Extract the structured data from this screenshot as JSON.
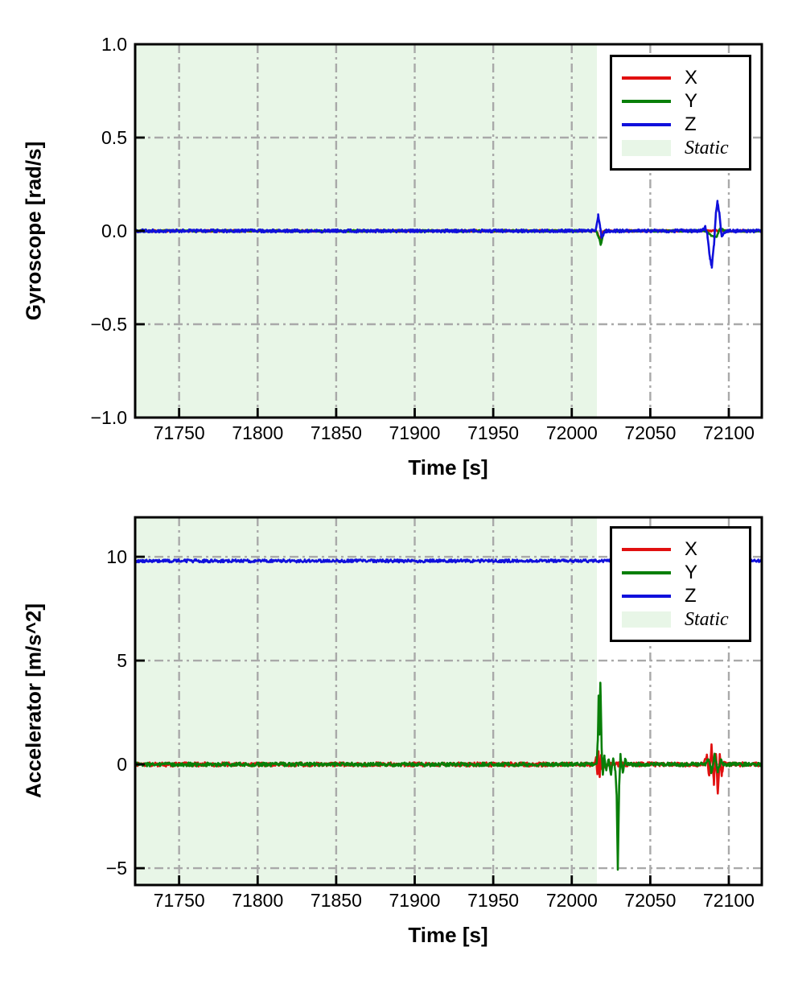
{
  "figure": {
    "background": "#ffffff"
  },
  "styles": {
    "grid_color": "#a9a9a9",
    "axis_color": "#000000",
    "tick_label_color": "#000000",
    "static_fill": "#e8f6e7",
    "series_colors": {
      "x": "#e11010",
      "y": "#087f08",
      "z": "#1010dc"
    }
  },
  "chart_data": [
    {
      "type": "line",
      "title": "",
      "xlabel": "Time [s]",
      "ylabel": "Gyroscope [rad/s]",
      "xlim": [
        71722,
        72121
      ],
      "ylim": [
        -1.0,
        1.0
      ],
      "xticks": [
        71750,
        71800,
        71850,
        71900,
        71950,
        72000,
        72050,
        72100
      ],
      "xtick_labels": [
        "71750",
        "71800",
        "71850",
        "71900",
        "71950",
        "72000",
        "72050",
        "72100"
      ],
      "yticks": [
        -1.0,
        -0.5,
        0.0,
        0.5,
        1.0
      ],
      "ytick_labels": [
        "−1.0",
        "−0.5",
        "0.0",
        "0.5",
        "1.0"
      ],
      "grid": {
        "style": "dash-dot",
        "color": "#a9a9a9",
        "on": true
      },
      "static_region": {
        "x0": 71722,
        "x1": 72016,
        "fill": "#e8f6e7",
        "label": "Static"
      },
      "legend": {
        "position": "upper right",
        "entries": [
          {
            "label": "X",
            "color": "#e11010",
            "kind": "line"
          },
          {
            "label": "Y",
            "color": "#087f08",
            "kind": "line"
          },
          {
            "label": "Z",
            "color": "#1010dc",
            "kind": "line"
          },
          {
            "label": "Static",
            "color": "#e8f6e7",
            "kind": "patch",
            "italic": true
          }
        ]
      },
      "series": [
        {
          "name": "X",
          "color": "#e11010",
          "base": 0,
          "noise": 0.005,
          "events": [
            [
              [
                72015.5,
                0
              ],
              [
                72017,
                -0.025
              ],
              [
                72018,
                -0.05
              ],
              [
                72019.5,
                -0.012
              ],
              [
                72021,
                0
              ]
            ]
          ]
        },
        {
          "name": "Y",
          "color": "#087f08",
          "base": 0,
          "noise": 0.005,
          "events": [
            [
              [
                72015.5,
                0
              ],
              [
                72017.5,
                -0.04
              ],
              [
                72018.5,
                -0.075
              ],
              [
                72020,
                -0.02
              ],
              [
                72021.5,
                0
              ]
            ],
            [
              [
                72085,
                0
              ],
              [
                72089,
                -0.028
              ],
              [
                72092,
                -0.035
              ],
              [
                72094.5,
                0.015
              ],
              [
                72097,
                0
              ]
            ]
          ]
        },
        {
          "name": "Z",
          "color": "#1010dc",
          "base": 0,
          "noise": 0.008,
          "events": [
            [
              [
                72015,
                0
              ],
              [
                72016.2,
                0.05
              ],
              [
                72016.8,
                0.085
              ],
              [
                72018,
                0.02
              ],
              [
                72019,
                -0.032
              ],
              [
                72020.5,
                -0.012
              ],
              [
                72022,
                0
              ]
            ],
            [
              [
                72083,
                0
              ],
              [
                72085,
                0.025
              ],
              [
                72086.5,
                -0.03
              ],
              [
                72088,
                -0.15
              ],
              [
                72089.2,
                -0.19
              ],
              [
                72090.6,
                -0.07
              ],
              [
                72091.8,
                0.1
              ],
              [
                72092.8,
                0.155
              ],
              [
                72094,
                0.09
              ],
              [
                72095.5,
                -0.03
              ],
              [
                72097.5,
                -0.008
              ],
              [
                72099,
                0
              ]
            ]
          ]
        }
      ]
    },
    {
      "type": "line",
      "title": "",
      "xlabel": "Time [s]",
      "ylabel": "Accelerator [m/s^2]",
      "xlim": [
        71722,
        72121
      ],
      "ylim": [
        -5.81,
        11.9
      ],
      "xticks": [
        71750,
        71800,
        71850,
        71900,
        71950,
        72000,
        72050,
        72100
      ],
      "xtick_labels": [
        "71750",
        "71800",
        "71850",
        "71900",
        "71950",
        "72000",
        "72050",
        "72100"
      ],
      "yticks": [
        -5,
        0,
        5,
        10
      ],
      "ytick_labels": [
        "−5",
        "0",
        "5",
        "10"
      ],
      "grid": {
        "style": "dash-dot",
        "color": "#a9a9a9",
        "on": true
      },
      "static_region": {
        "x0": 71722,
        "x1": 72016,
        "fill": "#e8f6e7",
        "label": "Static"
      },
      "legend": {
        "position": "upper right",
        "entries": [
          {
            "label": "X",
            "color": "#e11010",
            "kind": "line"
          },
          {
            "label": "Y",
            "color": "#087f08",
            "kind": "line"
          },
          {
            "label": "Z",
            "color": "#1010dc",
            "kind": "line"
          },
          {
            "label": "Static",
            "color": "#e8f6e7",
            "kind": "patch",
            "italic": true
          }
        ]
      },
      "series": [
        {
          "name": "X",
          "color": "#e11010",
          "base": 0,
          "noise": 0.1,
          "events": [
            [
              [
                72014.5,
                0
              ],
              [
                72015.5,
                0.3
              ],
              [
                72016.3,
                -0.4
              ],
              [
                72017,
                0.55
              ],
              [
                72017.8,
                -0.55
              ],
              [
                72018.6,
                0.45
              ],
              [
                72019.5,
                -0.35
              ],
              [
                72020.5,
                0.25
              ],
              [
                72021.5,
                -0.15
              ],
              [
                72023,
                0
              ]
            ],
            [
              [
                72084,
                0
              ],
              [
                72086,
                0.4
              ],
              [
                72087.5,
                -0.6
              ],
              [
                72089,
                0.9
              ],
              [
                72090.5,
                -0.9
              ],
              [
                72091.8,
                0.6
              ],
              [
                72093,
                -1.43
              ],
              [
                72094.2,
                0.5
              ],
              [
                72095.5,
                -0.5
              ],
              [
                72097,
                0.2
              ],
              [
                72098.5,
                0
              ]
            ]
          ]
        },
        {
          "name": "Y",
          "color": "#087f08",
          "base": 0,
          "noise": 0.09,
          "events": [
            [
              [
                72015.8,
                0
              ],
              [
                72016.6,
                1.2
              ],
              [
                72017.1,
                3.3
              ],
              [
                72017.6,
                1.5
              ],
              [
                72018.2,
                4.0
              ],
              [
                72019,
                0.8
              ],
              [
                72019.8,
                -0.5
              ],
              [
                72020.8,
                0.35
              ],
              [
                72022,
                -0.3
              ],
              [
                72023.5,
                0.25
              ],
              [
                72025,
                -0.45
              ],
              [
                72026.5,
                0.3
              ],
              [
                72027.8,
                -0.3
              ],
              [
                72028.6,
                -1.5
              ],
              [
                72029.3,
                -5.0
              ],
              [
                72030.2,
                -1.0
              ],
              [
                72031,
                0.45
              ],
              [
                72032.5,
                -0.35
              ],
              [
                72034,
                0.2
              ],
              [
                72035.5,
                0
              ]
            ],
            [
              [
                72085,
                0
              ],
              [
                72087,
                0.3
              ],
              [
                72089,
                -0.4
              ],
              [
                72091,
                0.45
              ],
              [
                72093,
                -0.35
              ],
              [
                72095,
                0.25
              ],
              [
                72096.5,
                0
              ]
            ]
          ]
        },
        {
          "name": "Z",
          "color": "#1010dc",
          "base": 9.8,
          "noise": 0.07,
          "events": []
        }
      ]
    }
  ]
}
